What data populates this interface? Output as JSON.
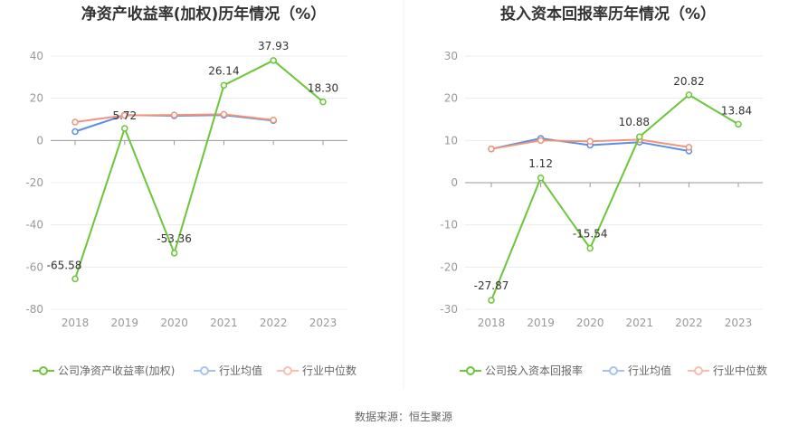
{
  "source_label": "数据来源：恒生聚源",
  "colors": {
    "company": "#6dc53a",
    "industry_avg": "#5b8ee6",
    "industry_median": "#f0957a",
    "grid": "#ebebeb",
    "axis": "#999999"
  },
  "chart_data": [
    {
      "type": "line",
      "title": "净资产收益率(加权)历年情况（%）",
      "categories": [
        "2018",
        "2019",
        "2020",
        "2021",
        "2022",
        "2023"
      ],
      "ylim": [
        -80,
        40
      ],
      "yticks": [
        40,
        20,
        0,
        -20,
        -40,
        -60,
        -80
      ],
      "grid": true,
      "legend_position": "bottom",
      "series": [
        {
          "key": "company",
          "name": "公司净资产收益率(加权)",
          "values": [
            -65.58,
            5.72,
            -53.36,
            26.14,
            37.93,
            18.3
          ],
          "labels": [
            "-65.58",
            "5.72",
            "-53.36",
            "26.14",
            "37.93",
            "18.30"
          ]
        },
        {
          "key": "industry_avg",
          "name": "行业均值",
          "values": [
            4.2,
            12.0,
            11.7,
            12.0,
            9.4,
            null
          ]
        },
        {
          "key": "industry_median",
          "name": "行业中位数",
          "values": [
            8.7,
            11.9,
            12.1,
            12.4,
            9.7,
            null
          ]
        }
      ]
    },
    {
      "type": "line",
      "title": "投入资本回报率历年情况（%）",
      "categories": [
        "2018",
        "2019",
        "2020",
        "2021",
        "2022",
        "2023"
      ],
      "ylim": [
        -30,
        30
      ],
      "yticks": [
        30,
        20,
        10,
        0,
        -10,
        -20,
        -30
      ],
      "grid": true,
      "legend_position": "bottom",
      "series": [
        {
          "key": "company",
          "name": "公司投入资本回报率",
          "values": [
            -27.87,
            1.12,
            -15.54,
            10.88,
            20.82,
            13.84
          ],
          "labels": [
            "-27.87",
            "1.12",
            "-15.54",
            "10.88",
            "20.82",
            "13.84"
          ]
        },
        {
          "key": "industry_avg",
          "name": "行业均值",
          "values": [
            8.0,
            10.5,
            8.9,
            9.6,
            7.5,
            null
          ]
        },
        {
          "key": "industry_median",
          "name": "行业中位数",
          "values": [
            8.0,
            10.0,
            9.8,
            10.2,
            8.4,
            null
          ]
        }
      ]
    }
  ]
}
